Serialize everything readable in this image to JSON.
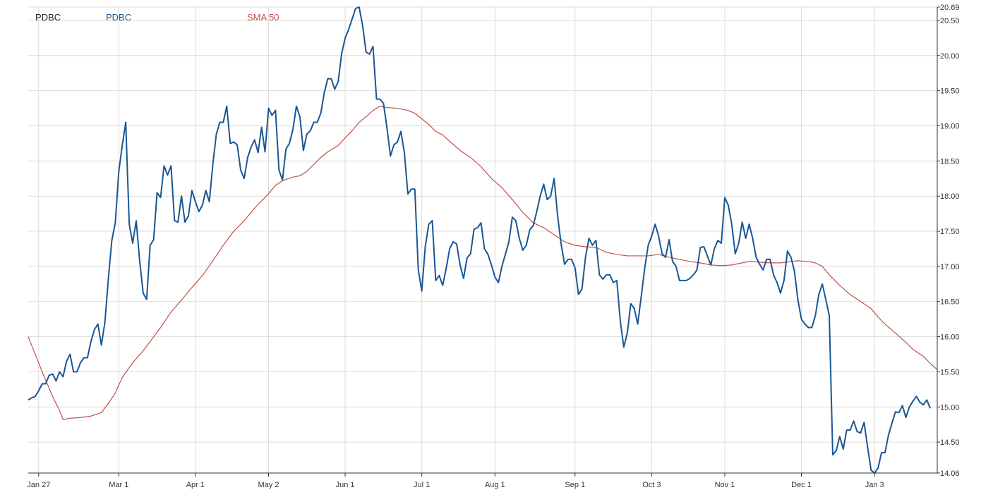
{
  "legend": {
    "symbol": "PDBC",
    "price_series": "PDBC",
    "sma_series": "SMA 50"
  },
  "colors": {
    "price": "#1a5694",
    "sma": "#c0504d",
    "grid": "#dcdcdc",
    "axis_text": "#333333"
  },
  "chart_data": {
    "type": "line",
    "grid": true,
    "legend_position": "top-left",
    "y_axis_side": "right",
    "ylim": [
      14.06,
      20.69
    ],
    "y_ticks": [
      "20.69",
      "20.50",
      "20.00",
      "19.50",
      "19.00",
      "18.50",
      "18.00",
      "17.50",
      "17.00",
      "16.50",
      "16.00",
      "15.50",
      "15.00",
      "14.50",
      "14.06"
    ],
    "x_ticks": [
      {
        "label": "Jan 27",
        "idx": 3
      },
      {
        "label": "Mar 1",
        "idx": 26
      },
      {
        "label": "Apr 1",
        "idx": 48
      },
      {
        "label": "May 2",
        "idx": 69
      },
      {
        "label": "Jun 1",
        "idx": 91
      },
      {
        "label": "Jul 1",
        "idx": 113
      },
      {
        "label": "Aug 1",
        "idx": 134
      },
      {
        "label": "Sep 1",
        "idx": 157
      },
      {
        "label": "Oct 3",
        "idx": 179
      },
      {
        "label": "Nov 1",
        "idx": 200
      },
      {
        "label": "Dec 1",
        "idx": 222
      },
      {
        "label": "Jan 3",
        "idx": 243
      }
    ],
    "x_count": 262,
    "series": [
      {
        "name": "PDBC",
        "values": [
          15.1,
          15.13,
          15.15,
          15.23,
          15.33,
          15.33,
          15.45,
          15.47,
          15.37,
          15.5,
          15.43,
          15.65,
          15.75,
          15.5,
          15.5,
          15.63,
          15.7,
          15.7,
          15.93,
          16.1,
          16.18,
          15.88,
          16.2,
          16.82,
          17.37,
          17.62,
          18.35,
          18.72,
          19.05,
          17.6,
          17.33,
          17.65,
          17.08,
          16.62,
          16.53,
          17.3,
          17.38,
          18.05,
          17.98,
          18.43,
          18.3,
          18.43,
          17.65,
          17.63,
          18.0,
          17.63,
          17.72,
          18.08,
          17.92,
          17.78,
          17.87,
          18.08,
          17.92,
          18.45,
          18.88,
          19.05,
          19.05,
          19.28,
          18.75,
          18.77,
          18.73,
          18.37,
          18.25,
          18.55,
          18.7,
          18.8,
          18.62,
          18.98,
          18.63,
          19.25,
          19.15,
          19.22,
          18.37,
          18.23,
          18.67,
          18.75,
          18.95,
          19.28,
          19.13,
          18.65,
          18.88,
          18.93,
          19.05,
          19.05,
          19.18,
          19.47,
          19.67,
          19.67,
          19.52,
          19.63,
          20.03,
          20.25,
          20.37,
          20.52,
          20.67,
          20.69,
          20.43,
          20.05,
          20.02,
          20.13,
          19.38,
          19.38,
          19.32,
          18.97,
          18.57,
          18.73,
          18.77,
          18.92,
          18.62,
          18.03,
          18.1,
          18.1,
          16.95,
          16.65,
          17.28,
          17.6,
          17.65,
          16.8,
          16.87,
          16.73,
          16.97,
          17.25,
          17.35,
          17.32,
          17.02,
          16.83,
          17.12,
          17.18,
          17.53,
          17.55,
          17.62,
          17.25,
          17.17,
          17.02,
          16.85,
          16.77,
          17.0,
          17.17,
          17.35,
          17.7,
          17.65,
          17.4,
          17.23,
          17.3,
          17.52,
          17.58,
          17.78,
          18.0,
          18.17,
          17.95,
          18.0,
          18.25,
          17.72,
          17.32,
          17.03,
          17.1,
          17.1,
          16.98,
          16.6,
          16.68,
          17.13,
          17.4,
          17.3,
          17.37,
          16.88,
          16.82,
          16.88,
          16.88,
          16.77,
          16.8,
          16.22,
          15.85,
          16.05,
          16.47,
          16.4,
          16.18,
          16.57,
          16.97,
          17.3,
          17.43,
          17.6,
          17.43,
          17.18,
          17.13,
          17.38,
          17.07,
          17.0,
          16.8,
          16.8,
          16.8,
          16.83,
          16.88,
          16.95,
          17.27,
          17.28,
          17.15,
          17.02,
          17.25,
          17.37,
          17.33,
          17.98,
          17.87,
          17.6,
          17.18,
          17.33,
          17.63,
          17.4,
          17.6,
          17.4,
          17.13,
          17.03,
          16.95,
          17.1,
          17.1,
          16.88,
          16.77,
          16.62,
          16.8,
          17.22,
          17.13,
          16.93,
          16.52,
          16.25,
          16.18,
          16.13,
          16.13,
          16.3,
          16.6,
          16.75,
          16.53,
          16.3,
          14.32,
          14.38,
          14.58,
          14.4,
          14.67,
          14.67,
          14.8,
          14.65,
          14.63,
          14.78,
          14.43,
          14.1,
          14.06,
          14.13,
          14.35,
          14.35,
          14.6,
          14.77,
          14.93,
          14.92,
          15.02,
          14.85,
          15.0,
          15.08,
          15.15,
          15.07,
          15.03,
          15.1,
          14.98
        ]
      },
      {
        "name": "SMA 50",
        "points": [
          [
            0,
            16.0
          ],
          [
            4,
            15.5
          ],
          [
            7,
            15.15
          ],
          [
            9,
            14.95
          ],
          [
            10,
            14.82
          ],
          [
            12,
            14.84
          ],
          [
            15,
            14.85
          ],
          [
            18,
            14.87
          ],
          [
            21,
            14.92
          ],
          [
            23,
            15.05
          ],
          [
            25,
            15.2
          ],
          [
            27,
            15.42
          ],
          [
            30,
            15.63
          ],
          [
            33,
            15.8
          ],
          [
            35,
            15.93
          ],
          [
            38,
            16.13
          ],
          [
            41,
            16.35
          ],
          [
            44,
            16.52
          ],
          [
            47,
            16.7
          ],
          [
            50,
            16.87
          ],
          [
            53,
            17.08
          ],
          [
            56,
            17.3
          ],
          [
            59,
            17.5
          ],
          [
            62,
            17.65
          ],
          [
            65,
            17.83
          ],
          [
            68,
            17.98
          ],
          [
            71,
            18.15
          ],
          [
            73,
            18.22
          ],
          [
            76,
            18.27
          ],
          [
            78,
            18.29
          ],
          [
            80,
            18.35
          ],
          [
            82,
            18.45
          ],
          [
            84,
            18.55
          ],
          [
            86,
            18.63
          ],
          [
            89,
            18.72
          ],
          [
            91,
            18.83
          ],
          [
            93,
            18.93
          ],
          [
            95,
            19.05
          ],
          [
            97,
            19.13
          ],
          [
            99,
            19.22
          ],
          [
            101,
            19.28
          ],
          [
            103,
            19.26
          ],
          [
            106,
            19.25
          ],
          [
            109,
            19.22
          ],
          [
            111,
            19.18
          ],
          [
            113,
            19.1
          ],
          [
            115,
            19.02
          ],
          [
            117,
            18.92
          ],
          [
            119,
            18.87
          ],
          [
            121,
            18.78
          ],
          [
            124,
            18.65
          ],
          [
            127,
            18.55
          ],
          [
            130,
            18.42
          ],
          [
            133,
            18.25
          ],
          [
            136,
            18.12
          ],
          [
            139,
            17.95
          ],
          [
            142,
            17.77
          ],
          [
            145,
            17.62
          ],
          [
            148,
            17.55
          ],
          [
            151,
            17.45
          ],
          [
            154,
            17.35
          ],
          [
            157,
            17.3
          ],
          [
            160,
            17.28
          ],
          [
            163,
            17.27
          ],
          [
            166,
            17.2
          ],
          [
            169,
            17.17
          ],
          [
            172,
            17.15
          ],
          [
            175,
            17.15
          ],
          [
            178,
            17.15
          ],
          [
            181,
            17.17
          ],
          [
            184,
            17.13
          ],
          [
            187,
            17.1
          ],
          [
            190,
            17.07
          ],
          [
            193,
            17.05
          ],
          [
            196,
            17.02
          ],
          [
            199,
            17.01
          ],
          [
            202,
            17.02
          ],
          [
            205,
            17.05
          ],
          [
            207,
            17.07
          ],
          [
            210,
            17.06
          ],
          [
            213,
            17.05
          ],
          [
            216,
            17.05
          ],
          [
            219,
            17.07
          ],
          [
            221,
            17.08
          ],
          [
            224,
            17.07
          ],
          [
            226,
            17.05
          ],
          [
            228,
            17.0
          ],
          [
            230,
            16.88
          ],
          [
            233,
            16.73
          ],
          [
            236,
            16.6
          ],
          [
            239,
            16.5
          ],
          [
            242,
            16.4
          ],
          [
            244,
            16.28
          ],
          [
            246,
            16.18
          ],
          [
            249,
            16.05
          ],
          [
            252,
            15.92
          ],
          [
            254,
            15.82
          ],
          [
            257,
            15.72
          ],
          [
            259,
            15.62
          ],
          [
            261,
            15.53
          ]
        ]
      }
    ]
  }
}
